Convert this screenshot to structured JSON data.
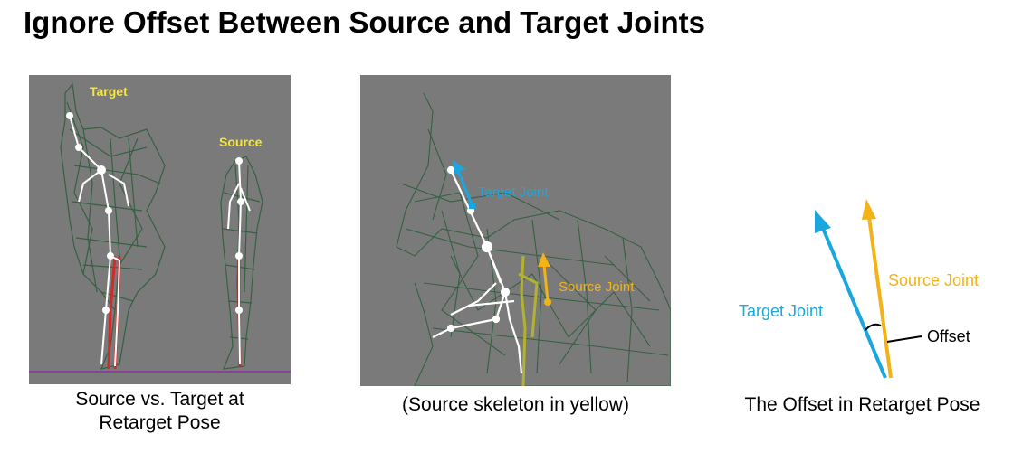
{
  "title": "Ignore Offset Between Source and Target Joints",
  "left_panel": {
    "target_label": "Target",
    "source_label": "Source",
    "caption_line1": "Source vs. Target at",
    "caption_line2": "Retarget Pose"
  },
  "middle_panel": {
    "target_joint_label": "Target Joint",
    "source_joint_label": "Source Joint",
    "caption": "(Source skeleton in yellow)"
  },
  "right_diagram": {
    "target_joint_label": "Target Joint",
    "source_joint_label": "Source Joint",
    "offset_label": "Offset",
    "caption": "The Offset in Retarget Pose"
  },
  "colors": {
    "target_blue": "#1aa7e0",
    "source_yellow": "#f2b318",
    "panel_gray": "#7a7a7a",
    "mesh_green": "#2f5e3c",
    "label_yellow": "#f5e63a"
  }
}
